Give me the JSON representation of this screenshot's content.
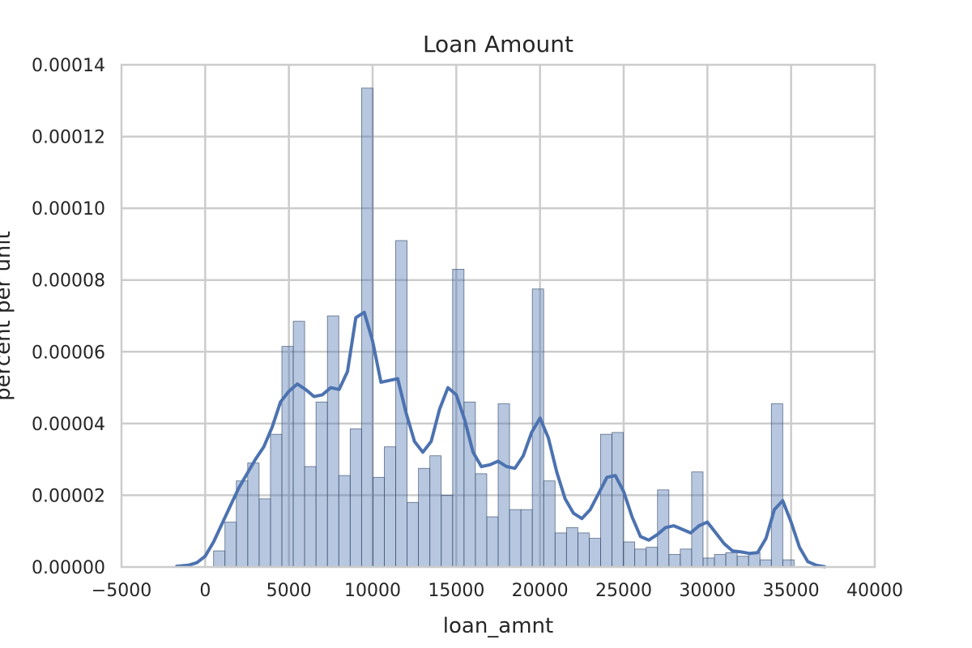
{
  "chart_data": {
    "type": "bar",
    "title": "Loan Amount",
    "xlabel": "loan_amnt",
    "ylabel": "percent per unit",
    "xlim": [
      -5000,
      40000
    ],
    "ylim": [
      0,
      0.00014
    ],
    "x_ticks": [
      "−5000",
      "0",
      "5000",
      "10000",
      "15000",
      "20000",
      "25000",
      "30000",
      "35000",
      "40000"
    ],
    "y_ticks": [
      "0.00000",
      "0.00002",
      "0.00004",
      "0.00006",
      "0.00008",
      "0.00010",
      "0.00012",
      "0.00014"
    ],
    "grid": true,
    "legend": "none",
    "histogram": {
      "bin_edges": [
        500,
        1180,
        1860,
        2540,
        3220,
        3900,
        4580,
        5260,
        5940,
        6620,
        7300,
        7980,
        8660,
        9340,
        10020,
        10700,
        11380,
        12060,
        12740,
        13420,
        14100,
        14780,
        15460,
        16140,
        16820,
        17500,
        18180,
        18860,
        19540,
        20220,
        20900,
        21580,
        22260,
        22940,
        23620,
        24300,
        24980,
        25660,
        26340,
        27020,
        27700,
        28380,
        29060,
        29740,
        30420,
        31100,
        31780,
        32460,
        33140,
        33820,
        34500,
        35180
      ],
      "densities": [
        4.5e-06,
        1.25e-05,
        2.4e-05,
        2.9e-05,
        1.9e-05,
        3.7e-05,
        6.15e-05,
        6.85e-05,
        2.8e-05,
        4.6e-05,
        7e-05,
        2.55e-05,
        3.85e-05,
        0.0001335,
        2.5e-05,
        3.35e-05,
        9.1e-05,
        1.8e-05,
        2.75e-05,
        3.1e-05,
        2e-05,
        8.3e-05,
        4.6e-05,
        2.6e-05,
        1.4e-05,
        4.55e-05,
        1.6e-05,
        1.6e-05,
        7.75e-05,
        2.4e-05,
        9.5e-06,
        1.1e-05,
        9.5e-06,
        8e-06,
        3.7e-05,
        3.75e-05,
        7e-06,
        5e-06,
        5.5e-06,
        2.15e-05,
        3.5e-06,
        5e-06,
        2.65e-05,
        2.5e-06,
        3.5e-06,
        4e-06,
        3e-06,
        4e-06,
        2e-06,
        4.55e-05,
        2e-06
      ]
    },
    "kde": {
      "x": [
        -1700,
        -1000,
        -500,
        0,
        500,
        1000,
        1500,
        2000,
        2500,
        3000,
        3500,
        4000,
        4500,
        5000,
        5500,
        6000,
        6500,
        7000,
        7500,
        8000,
        8500,
        9000,
        9500,
        10000,
        10500,
        11000,
        11500,
        12000,
        12500,
        13000,
        13500,
        14000,
        14500,
        15000,
        15500,
        16000,
        16500,
        17000,
        17500,
        18000,
        18500,
        19000,
        19500,
        20000,
        20500,
        21000,
        21500,
        22000,
        22500,
        23000,
        23500,
        24000,
        24500,
        25000,
        25500,
        26000,
        26500,
        27000,
        27500,
        28000,
        28500,
        29000,
        29500,
        30000,
        30500,
        31000,
        31500,
        32000,
        32500,
        33000,
        33500,
        34000,
        34500,
        35000,
        35500,
        36000,
        36500,
        37000
      ],
      "y": [
        2e-07,
        5e-07,
        1.2e-06,
        3e-06,
        7e-06,
        1.2e-05,
        1.7e-05,
        2.2e-05,
        2.6e-05,
        3e-05,
        3.35e-05,
        3.9e-05,
        4.6e-05,
        4.9e-05,
        5.1e-05,
        4.95e-05,
        4.75e-05,
        4.8e-05,
        5e-05,
        4.95e-05,
        5.45e-05,
        6.95e-05,
        7.1e-05,
        6.3e-05,
        5.15e-05,
        5.2e-05,
        5.25e-05,
        4.3e-05,
        3.5e-05,
        3.2e-05,
        3.5e-05,
        4.4e-05,
        5e-05,
        4.8e-05,
        4.1e-05,
        3.2e-05,
        2.8e-05,
        2.85e-05,
        2.95e-05,
        2.8e-05,
        2.75e-05,
        3.1e-05,
        3.75e-05,
        4.15e-05,
        3.6e-05,
        2.65e-05,
        1.9e-05,
        1.5e-05,
        1.35e-05,
        1.6e-05,
        2.05e-05,
        2.5e-05,
        2.55e-05,
        2.1e-05,
        1.4e-05,
        8.5e-06,
        7.5e-06,
        9e-06,
        1.1e-05,
        1.15e-05,
        1.05e-05,
        9.5e-06,
        1.15e-05,
        1.25e-05,
        9.5e-06,
        6.5e-06,
        4.5e-06,
        4.2e-06,
        3.8e-06,
        4e-06,
        8e-06,
        1.6e-05,
        1.85e-05,
        1.25e-05,
        5.5e-06,
        1.5e-06,
        5e-07,
        1e-07
      ]
    },
    "colors": {
      "bar_fill": "#4c72b0",
      "bar_edge": "#3a4f6e",
      "kde_line": "#4c72b0",
      "grid": "#cccccc",
      "frame": "#cccccc"
    }
  }
}
